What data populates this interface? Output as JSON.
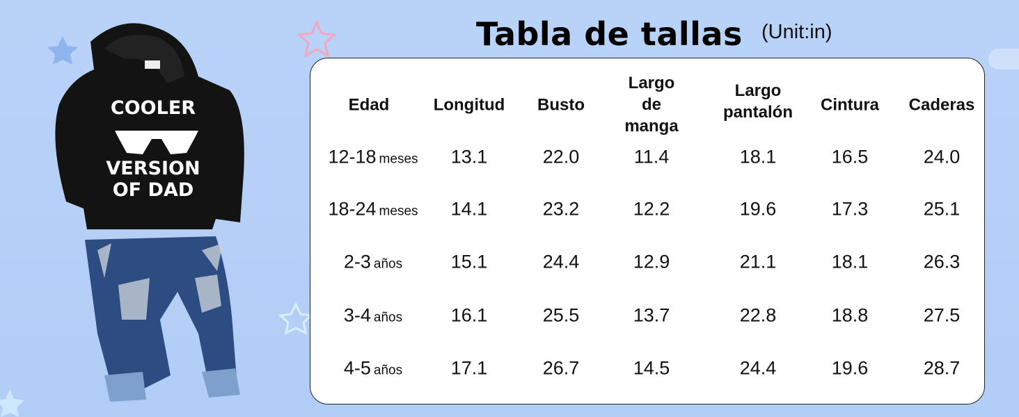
{
  "header": {
    "title": "Tabla de tallas",
    "unit": "(Unit:in)"
  },
  "product": {
    "print_lines": [
      "COOLER",
      "VERSION",
      "OF DAD"
    ]
  },
  "table": {
    "columns": [
      [
        "Edad"
      ],
      [
        "Longitud"
      ],
      [
        "Busto"
      ],
      [
        "Largo",
        "de",
        "manga"
      ],
      [
        "Largo",
        "pantalón"
      ],
      [
        "Cintura"
      ],
      [
        "Caderas"
      ]
    ],
    "rows": [
      [
        [
          "12-18",
          "meses"
        ],
        "13.1",
        "22.0",
        "11.4",
        "18.1",
        "16.5",
        "24.0"
      ],
      [
        [
          "18-24",
          "meses"
        ],
        "14.1",
        "23.2",
        "12.2",
        "19.6",
        "17.3",
        "25.1"
      ],
      [
        [
          "2-3",
          "años"
        ],
        "15.1",
        "24.4",
        "12.9",
        "21.1",
        "18.1",
        "26.3"
      ],
      [
        [
          "3-4",
          "años"
        ],
        "16.1",
        "25.5",
        "13.7",
        "22.8",
        "18.8",
        "27.5"
      ],
      [
        [
          "4-5",
          "años"
        ],
        "17.1",
        "26.7",
        "14.5",
        "24.4",
        "19.6",
        "28.7"
      ]
    ]
  }
}
